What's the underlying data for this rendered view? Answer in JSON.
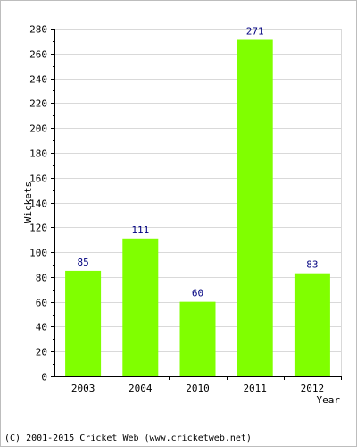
{
  "chart_data": {
    "type": "bar",
    "categories": [
      "2003",
      "2004",
      "2010",
      "2011",
      "2012"
    ],
    "values": [
      85,
      111,
      60,
      271,
      83
    ],
    "xlabel": "Year",
    "ylabel": "Wickets",
    "ylim": [
      0,
      280
    ],
    "yticks": [
      0,
      20,
      40,
      60,
      80,
      100,
      120,
      140,
      160,
      180,
      200,
      220,
      240,
      260,
      280
    ],
    "grid": true,
    "bar_color": "#80ff00",
    "value_label_color": "#000080"
  },
  "footer": {
    "text": "(C) 2001-2015 Cricket Web (www.cricketweb.net)"
  }
}
